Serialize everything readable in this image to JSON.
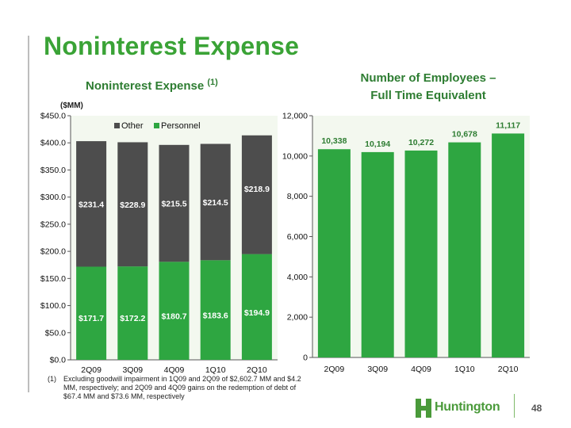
{
  "slide": {
    "title": "Noninterest Expense",
    "page_number": "48",
    "logo_text": "Huntington",
    "footnote": {
      "number": "(1)",
      "text": "Excluding goodwill impairment in 1Q09 and 2Q09 of $2,602.7 MM and $4.2 MM, respectively; and 2Q09 and 4Q09 gains on the redemption of debt of $67.4 MM and  $73.6 MM, respectively"
    }
  },
  "colors": {
    "brand_green": "#3aa336",
    "bar_green": "#2ea641",
    "bar_dark_gray": "#4d4d4d",
    "title_green": "#2e7d32"
  },
  "chart_data": [
    {
      "type": "bar",
      "stacked": true,
      "title": "Noninterest Expense",
      "title_suffix": "(1)",
      "units_label": "($MM)",
      "categories": [
        "2Q09",
        "3Q09",
        "4Q09",
        "1Q10",
        "2Q10"
      ],
      "series": [
        {
          "name": "Personnel",
          "values": [
            171.7,
            172.2,
            180.7,
            183.6,
            194.9
          ],
          "color": "#2ea641",
          "labels": [
            "$171.7",
            "$172.2",
            "$180.7",
            "$183.6",
            "$194.9"
          ]
        },
        {
          "name": "Other",
          "values": [
            231.4,
            228.9,
            215.5,
            214.5,
            218.9
          ],
          "color": "#4d4d4d",
          "labels": [
            "$231.4",
            "$228.9",
            "$215.5",
            "$214.5",
            "$218.9"
          ]
        }
      ],
      "legend": [
        "Other",
        "Personnel"
      ],
      "legend_position": "top",
      "ylim": [
        0,
        450
      ],
      "yticks": [
        0,
        50,
        100,
        150,
        200,
        250,
        300,
        350,
        400,
        450
      ],
      "ytick_labels": [
        "$0.0",
        "$50.0",
        "$100.0",
        "$150.0",
        "$200.0",
        "$250.0",
        "$300.0",
        "$350.0",
        "$400.0",
        "$450.0"
      ],
      "grid": false
    },
    {
      "type": "bar",
      "title": "Number of Employees – Full Time Equivalent",
      "title_lines": [
        "Number of Employees –",
        "Full Time Equivalent"
      ],
      "categories": [
        "2Q09",
        "3Q09",
        "4Q09",
        "1Q10",
        "2Q10"
      ],
      "values": [
        10338,
        10194,
        10272,
        10678,
        11117
      ],
      "labels": [
        "10,338",
        "10,194",
        "10,272",
        "10,678",
        "11,117"
      ],
      "color": "#2ea641",
      "ylim": [
        0,
        12000
      ],
      "yticks": [
        0,
        2000,
        4000,
        6000,
        8000,
        10000,
        12000
      ],
      "ytick_labels": [
        "0",
        "2,000",
        "4,000",
        "6,000",
        "8,000",
        "10,000",
        "12,000"
      ],
      "grid": false
    }
  ]
}
